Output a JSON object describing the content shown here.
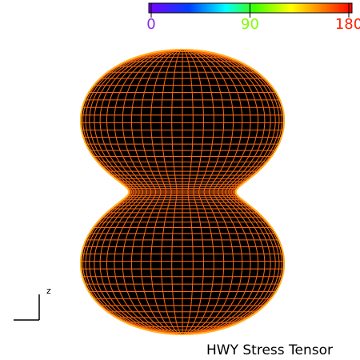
{
  "colorbar": {
    "ticks": [
      0,
      90,
      180
    ],
    "range": [
      0,
      180
    ]
  },
  "axis_label": "z",
  "title": "HWY Stress Tensor"
}
